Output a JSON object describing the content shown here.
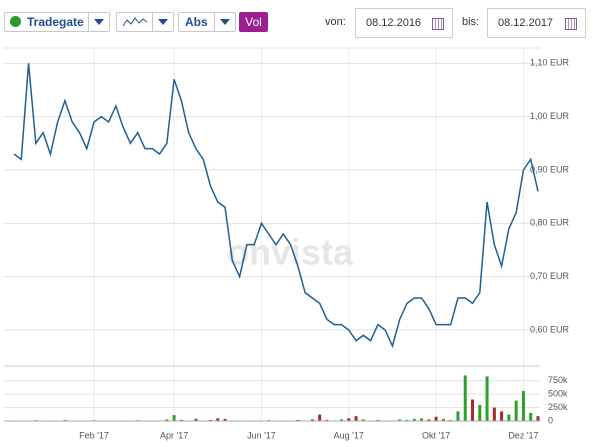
{
  "toolbar": {
    "exchange": "Tradegate",
    "mode": "Abs",
    "volume_button": "Vol",
    "from_label": "von:",
    "from_value": "08.12.2016",
    "to_label": "bis:",
    "to_value": "08.12.2017"
  },
  "watermark": "onvista",
  "chart_data": [
    {
      "type": "line",
      "color": "#1f5f96",
      "grid": true,
      "values": [
        0.93,
        0.92,
        1.1,
        0.95,
        0.97,
        0.93,
        0.99,
        1.03,
        0.99,
        0.97,
        0.94,
        0.99,
        1.0,
        0.99,
        1.02,
        0.98,
        0.95,
        0.97,
        0.94,
        0.94,
        0.93,
        0.95,
        1.07,
        1.03,
        0.97,
        0.94,
        0.92,
        0.87,
        0.84,
        0.83,
        0.73,
        0.7,
        0.76,
        0.76,
        0.8,
        0.78,
        0.76,
        0.78,
        0.76,
        0.72,
        0.67,
        0.66,
        0.65,
        0.62,
        0.61,
        0.61,
        0.6,
        0.58,
        0.59,
        0.58,
        0.61,
        0.6,
        0.57,
        0.62,
        0.65,
        0.66,
        0.66,
        0.64,
        0.61,
        0.61,
        0.61,
        0.66,
        0.66,
        0.65,
        0.67,
        0.84,
        0.76,
        0.72,
        0.79,
        0.82,
        0.9,
        0.92,
        0.86
      ],
      "ylim": [
        0.54,
        1.11
      ],
      "yticks": [
        {
          "value": 1.1,
          "label": "1,10 EUR"
        },
        {
          "value": 1.0,
          "label": "1,00 EUR"
        },
        {
          "value": 0.9,
          "label": "0,90 EUR"
        },
        {
          "value": 0.8,
          "label": "0,80 EUR"
        },
        {
          "value": 0.7,
          "label": "0,70 EUR"
        },
        {
          "value": 0.6,
          "label": "0,60 EUR"
        }
      ]
    },
    {
      "type": "bar",
      "up_color": "#2ca02c",
      "down_color": "#a52a2a",
      "categories": [
        null,
        null,
        null,
        null,
        null,
        null,
        null,
        null,
        null,
        null,
        null,
        "Feb '17",
        null,
        null,
        null,
        null,
        null,
        null,
        null,
        null,
        null,
        null,
        "Apr '17",
        null,
        null,
        null,
        null,
        null,
        null,
        null,
        null,
        null,
        null,
        null,
        "Jun '17",
        null,
        null,
        null,
        null,
        null,
        null,
        null,
        null,
        null,
        null,
        null,
        "Aug '17",
        null,
        null,
        null,
        null,
        null,
        null,
        null,
        null,
        null,
        null,
        null,
        "Okt '17",
        null,
        null,
        null,
        null,
        null,
        null,
        null,
        null,
        null,
        null,
        null,
        "Dez '17",
        null,
        null
      ],
      "values": [
        10000,
        5000,
        0,
        15000,
        0,
        10000,
        0,
        20000,
        0,
        0,
        5000,
        15000,
        0,
        5000,
        0,
        10000,
        0,
        15000,
        0,
        10000,
        0,
        30000,
        110000,
        20000,
        0,
        40000,
        10000,
        20000,
        50000,
        40000,
        10000,
        0,
        5000,
        10000,
        0,
        15000,
        0,
        10000,
        0,
        20000,
        10000,
        30000,
        120000,
        20000,
        10000,
        30000,
        50000,
        90000,
        30000,
        10000,
        20000,
        0,
        10000,
        30000,
        20000,
        40000,
        50000,
        30000,
        80000,
        40000,
        20000,
        180000,
        850000,
        400000,
        300000,
        830000,
        250000,
        180000,
        120000,
        380000,
        560000,
        150000,
        90000
      ],
      "ylim": [
        0,
        950000
      ],
      "yticks": [
        {
          "value": 750000,
          "label": "750k"
        },
        {
          "value": 500000,
          "label": "500k"
        },
        {
          "value": 250000,
          "label": "250k"
        },
        0
      ]
    }
  ]
}
